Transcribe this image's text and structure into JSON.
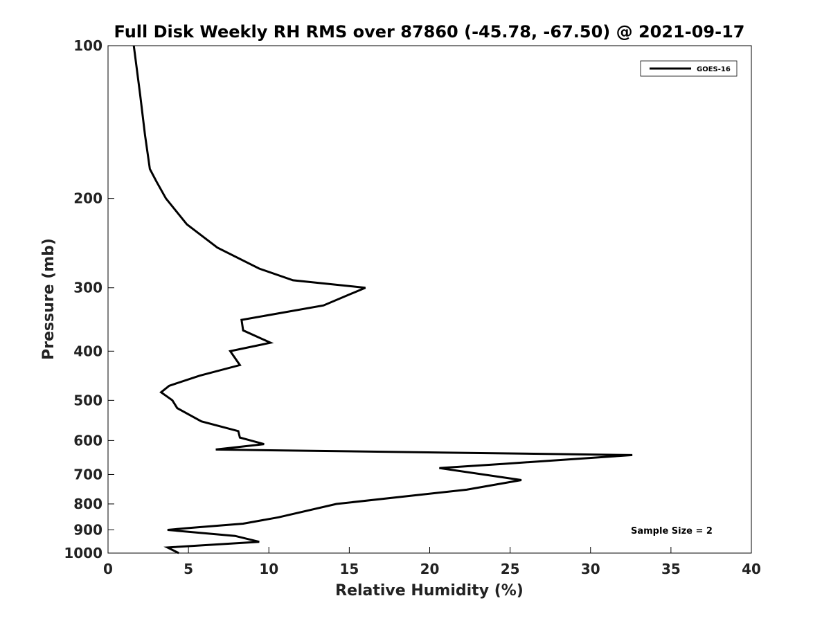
{
  "chart_data": {
    "type": "line",
    "title": "Full Disk Weekly RH RMS over 87860 (-45.78, -67.50) @ 2021-09-17",
    "xlabel": "Relative Humidity (%)",
    "ylabel": "Pressure (mb)",
    "xlim": [
      0,
      40
    ],
    "ylim": [
      100,
      1000
    ],
    "y_scale": "log",
    "y_reversed": true,
    "x_ticks": [
      0,
      5,
      10,
      15,
      20,
      25,
      30,
      35,
      40
    ],
    "y_ticks": [
      100,
      200,
      300,
      400,
      500,
      600,
      700,
      800,
      900,
      1000
    ],
    "grid": false,
    "legend_position": "top-right",
    "series": [
      {
        "name": "GOES-16",
        "color": "#000000",
        "x": [
          1.6,
          2.0,
          2.3,
          2.6,
          3.0,
          3.6,
          4.9,
          6.8,
          9.4,
          11.5,
          16.0,
          13.4,
          8.3,
          8.4,
          10.1,
          7.6,
          8.2,
          5.7,
          3.8,
          3.3,
          4.0,
          4.3,
          5.8,
          8.1,
          8.2,
          9.7,
          6.7,
          32.6,
          24.6,
          20.6,
          25.7,
          22.3,
          14.2,
          10.6,
          8.4,
          4.9,
          3.7,
          7.9,
          9.4,
          3.7,
          4.4
        ],
        "y": [
          100,
          125,
          150,
          175,
          185,
          200,
          225,
          250,
          275,
          290,
          300,
          325,
          347,
          364,
          385,
          400,
          426,
          447,
          468,
          482,
          500,
          518,
          550,
          575,
          592,
          610,
          625,
          641,
          667,
          680,
          718,
          750,
          800,
          850,
          875,
          893,
          900,
          925,
          950,
          975,
          1000
        ]
      }
    ],
    "annotations": [
      "Sample Size = 2"
    ]
  }
}
